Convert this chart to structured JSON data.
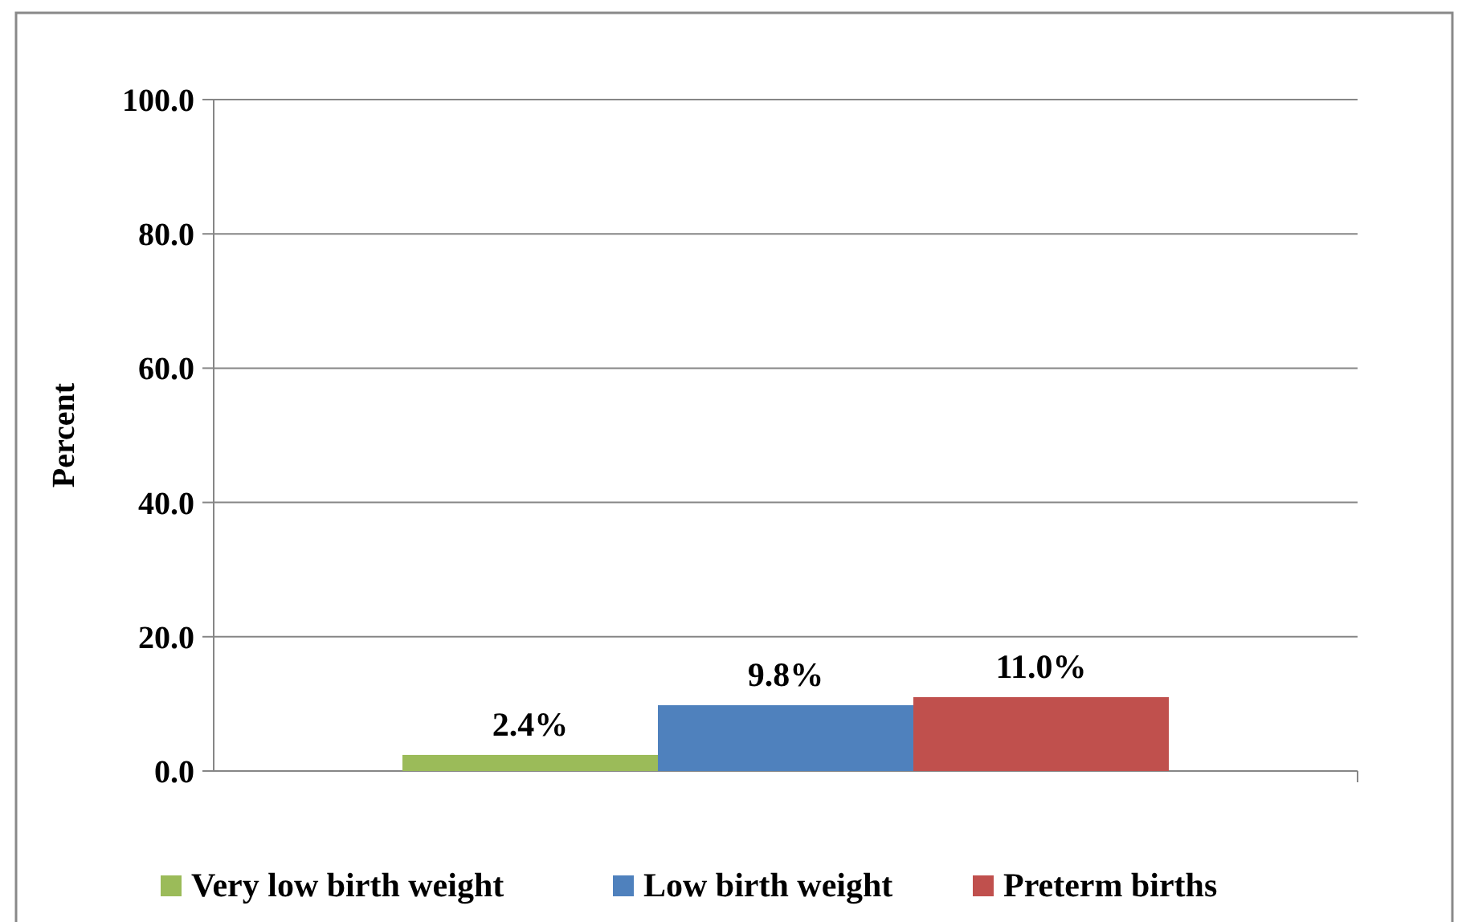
{
  "chart_data": {
    "type": "bar",
    "ylabel": "Percent",
    "categories": [
      null
    ],
    "series": [
      {
        "name": "Very low birth weight",
        "color": "#9bbb59",
        "values": [
          2.4
        ],
        "value_labels": [
          "2.4%"
        ]
      },
      {
        "name": "Low birth weight",
        "color": "#4f81bd",
        "values": [
          9.8
        ],
        "value_labels": [
          "9.8%"
        ]
      },
      {
        "name": "Preterm births",
        "color": "#c0504d",
        "values": [
          11.0
        ],
        "value_labels": [
          "11.0%"
        ]
      }
    ],
    "ylim": [
      0,
      100
    ],
    "yticks": [
      {
        "value": 0,
        "label": "0.0"
      },
      {
        "value": 20,
        "label": "20.0"
      },
      {
        "value": 40,
        "label": "40.0"
      },
      {
        "value": 60,
        "label": "60.0"
      },
      {
        "value": 80,
        "label": "80.0"
      },
      {
        "value": 100,
        "label": "100.0"
      }
    ],
    "grid": "y",
    "legend": "bottom"
  }
}
